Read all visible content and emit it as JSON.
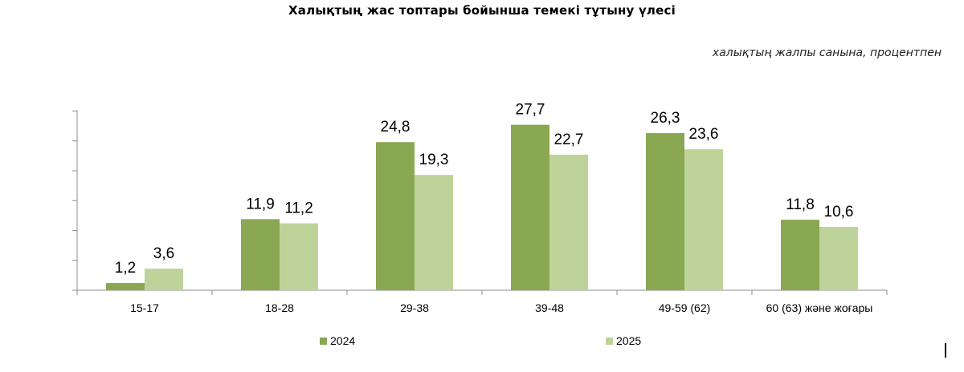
{
  "chart_data": {
    "type": "bar",
    "title": "Халықтың  жас топтары  бойынша  темекі тұтыну үлесі",
    "subtitle": "халықтың жалпы санына,  процентпен",
    "categories": [
      "15-17",
      "18-28",
      "29-38",
      "39-48",
      "49-59 (62)",
      "60 (63) және жоғары"
    ],
    "series": [
      {
        "name": "2024",
        "values": [
          1.2,
          11.9,
          24.8,
          27.7,
          26.3,
          11.8
        ],
        "labels": [
          "1,2",
          "11,9",
          "24,8",
          "27,7",
          "26,3",
          "11,8"
        ],
        "color": "#8aa752"
      },
      {
        "name": "2025",
        "values": [
          3.6,
          11.2,
          19.3,
          22.7,
          23.6,
          10.6
        ],
        "labels": [
          "3,6",
          "11,2",
          "19,3",
          "22,7",
          "23,6",
          "10,6"
        ],
        "color": "#bdd39a"
      }
    ],
    "ylim": [
      0,
      30
    ],
    "xlabel": "",
    "ylabel": "",
    "grid": false,
    "legend": "bottom"
  }
}
